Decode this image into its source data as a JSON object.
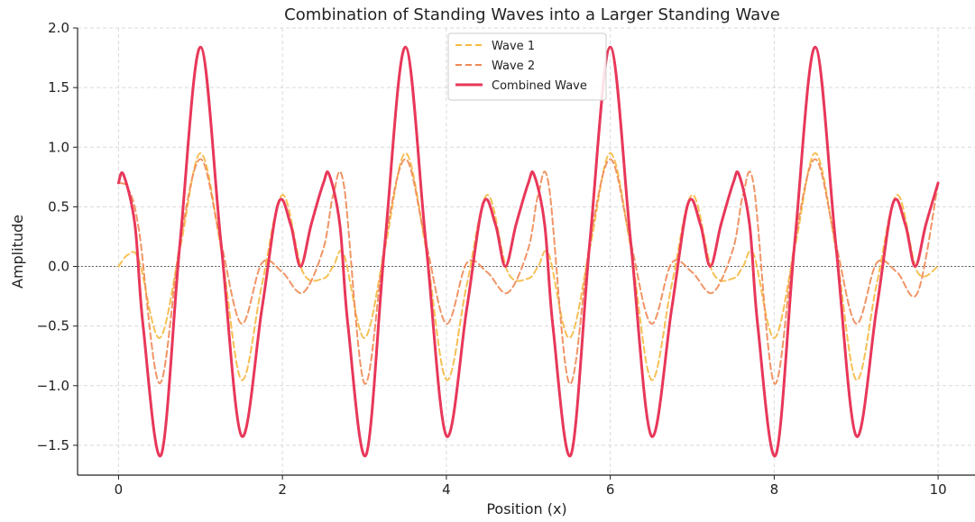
{
  "chart_data": {
    "type": "line",
    "title": "Combination of Standing Waves into a Larger Standing Wave",
    "xlabel": "Position (x)",
    "ylabel": "Amplitude",
    "xlim": [
      -0.5,
      10.45
    ],
    "ylim": [
      -1.75,
      2.0
    ],
    "xticks": [
      0,
      2,
      4,
      6,
      8,
      10
    ],
    "xtick_labels": [
      "0",
      "2",
      "4",
      "6",
      "8",
      "10"
    ],
    "yticks": [
      -1.5,
      -1.0,
      -0.5,
      0.0,
      0.5,
      1.0,
      1.5,
      2.0
    ],
    "ytick_labels": [
      "−1.5",
      "−1.0",
      "−0.5",
      "0.0",
      "0.5",
      "1.0",
      "1.5",
      "2.0"
    ],
    "grid": true,
    "zero_line": true,
    "legend_position": "top-center",
    "series": [
      {
        "name": "Wave 1",
        "style": "dashed",
        "color": "#f5b942",
        "x": [
          0,
          0.12,
          0.25,
          0.5,
          0.75,
          1.0,
          1.25,
          1.5,
          1.75,
          2.0,
          2.25,
          2.5,
          2.62,
          2.75,
          3.0,
          3.25,
          3.5,
          3.75,
          4.0,
          4.25,
          4.5,
          4.75,
          5.0,
          5.12,
          5.25,
          5.5,
          5.75,
          6.0,
          6.25,
          6.5,
          6.75,
          7.0,
          7.25,
          7.5,
          7.62,
          7.75,
          8.0,
          8.25,
          8.5,
          8.75,
          9.0,
          9.25,
          9.5,
          9.75,
          10.0
        ],
        "y": [
          0.0,
          0.1,
          0.05,
          -0.6,
          0.15,
          0.95,
          0.15,
          -0.95,
          -0.15,
          0.6,
          -0.05,
          -0.1,
          0.0,
          0.1,
          -0.6,
          0.15,
          0.95,
          0.15,
          -0.95,
          -0.15,
          0.6,
          -0.05,
          -0.1,
          0.0,
          0.1,
          -0.6,
          0.15,
          0.95,
          0.15,
          -0.95,
          -0.15,
          0.6,
          -0.05,
          -0.1,
          0.0,
          0.1,
          -0.6,
          0.15,
          0.95,
          0.15,
          -0.95,
          -0.15,
          0.6,
          -0.05,
          0.0
        ]
      },
      {
        "name": "Wave 2",
        "style": "dashed",
        "color": "#ee8a55",
        "x": [
          0,
          0.12,
          0.25,
          0.5,
          0.75,
          1.0,
          1.25,
          1.5,
          1.75,
          2.0,
          2.25,
          2.5,
          2.62,
          2.75,
          3.0,
          3.25,
          3.5,
          3.75,
          4.0,
          4.25,
          4.5,
          4.75,
          5.0,
          5.12,
          5.25,
          5.5,
          5.75,
          6.0,
          6.25,
          6.5,
          6.75,
          7.0,
          7.25,
          7.5,
          7.62,
          7.75,
          8.0,
          8.25,
          8.5,
          8.75,
          9.0,
          9.25,
          9.5,
          9.75,
          10.0
        ],
        "y": [
          0.7,
          0.65,
          0.3,
          -0.98,
          0.2,
          0.9,
          0.2,
          -0.48,
          0.03,
          -0.05,
          -0.22,
          0.15,
          0.6,
          0.68,
          -0.98,
          0.2,
          0.9,
          0.2,
          -0.48,
          0.03,
          -0.05,
          -0.22,
          0.15,
          0.6,
          0.68,
          -0.98,
          0.2,
          0.9,
          0.2,
          -0.48,
          0.03,
          -0.05,
          -0.22,
          0.15,
          0.6,
          0.68,
          -0.98,
          0.2,
          0.9,
          0.2,
          -0.48,
          0.03,
          -0.05,
          -0.22,
          0.7
        ]
      },
      {
        "name": "Combined Wave",
        "style": "solid",
        "color": "#e8375a",
        "x": [
          0,
          0.06,
          0.2,
          0.3,
          0.52,
          0.75,
          1.0,
          1.25,
          1.5,
          1.75,
          1.95,
          2.1,
          2.22,
          2.35,
          2.5,
          2.57,
          2.7,
          2.8,
          3.02,
          3.25,
          3.5,
          3.75,
          4.0,
          4.25,
          4.45,
          4.6,
          4.72,
          4.85,
          5.0,
          5.07,
          5.2,
          5.3,
          5.52,
          5.75,
          6.0,
          6.25,
          6.5,
          6.75,
          6.95,
          7.1,
          7.22,
          7.35,
          7.5,
          7.57,
          7.7,
          7.8,
          8.02,
          8.25,
          8.5,
          8.75,
          9.0,
          9.25,
          9.45,
          9.6,
          9.72,
          9.85,
          10.0
        ],
        "y": [
          0.7,
          0.77,
          0.35,
          -0.5,
          -1.58,
          0.2,
          1.84,
          0.2,
          -1.42,
          -0.35,
          0.53,
          0.35,
          0.0,
          0.35,
          0.7,
          0.77,
          0.35,
          -0.5,
          -1.58,
          0.2,
          1.84,
          0.2,
          -1.42,
          -0.35,
          0.53,
          0.35,
          0.0,
          0.35,
          0.7,
          0.77,
          0.35,
          -0.5,
          -1.58,
          0.2,
          1.84,
          0.2,
          -1.42,
          -0.35,
          0.53,
          0.35,
          0.0,
          0.35,
          0.7,
          0.77,
          0.35,
          -0.5,
          -1.58,
          0.2,
          1.84,
          0.2,
          -1.42,
          -0.35,
          0.53,
          0.35,
          0.0,
          0.35,
          0.7
        ]
      }
    ]
  }
}
